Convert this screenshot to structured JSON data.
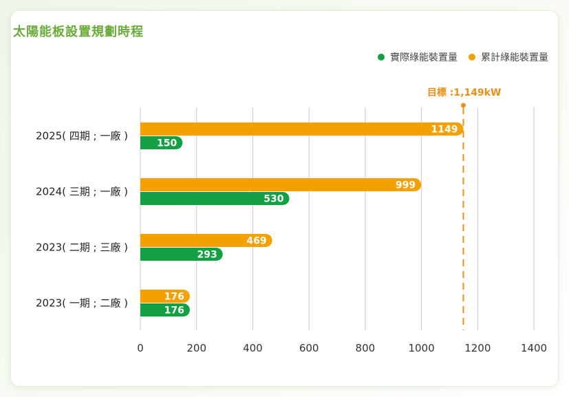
{
  "chart_data": {
    "type": "bar",
    "orientation": "horizontal",
    "title": "太陽能板設置規劃時程",
    "categories": [
      "2025( 四期 ; 一廠 )",
      "2024( 三期 ; 一廠 )",
      "2023( 二期 ; 三廠 )",
      "2023( 一期 ; 二廠 )"
    ],
    "series": [
      {
        "name": "累計綠能裝置量",
        "color": "#f2a100",
        "values": [
          1149,
          999,
          469,
          176
        ]
      },
      {
        "name": "實際綠能裝置量",
        "color": "#12a043",
        "values": [
          150,
          530,
          293,
          176
        ]
      }
    ],
    "xlim": [
      0,
      1400
    ],
    "xticks": [
      "0",
      "200",
      "400",
      "600",
      "800",
      "1000",
      "1200",
      "1400"
    ],
    "grid": true,
    "legend_position": "top-right",
    "target": {
      "label": "目標 :1,149kW",
      "value": 1149,
      "color": "#e8901a"
    }
  },
  "legend": [
    {
      "name": "實際綠能裝置量",
      "color": "#12a043"
    },
    {
      "name": "累計綠能裝置量",
      "color": "#f2a100"
    }
  ]
}
